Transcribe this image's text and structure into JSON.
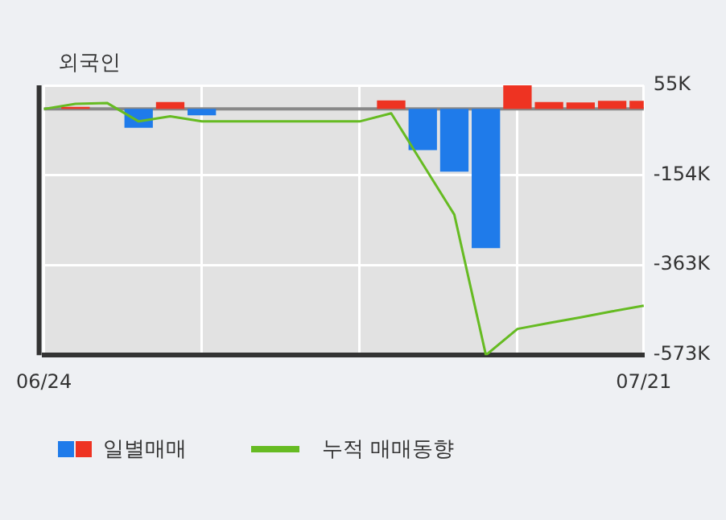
{
  "chart_data": {
    "type": "bar",
    "title": "외국인",
    "categories": [
      "06/24",
      null,
      null,
      null,
      null,
      null,
      null,
      null,
      null,
      null,
      null,
      null,
      null,
      null,
      null,
      null,
      null,
      null,
      null,
      "07/21"
    ],
    "series": [
      {
        "name": "일별매매",
        "colors": [
          "#1f7bea",
          "#ee3322",
          "#1f7bea",
          "#1f7bea",
          "#ee3322",
          "#1f7bea",
          "#1f7bea",
          "#1f7bea",
          "#1f7bea",
          "#1f7bea",
          "#1f7bea",
          "#ee3322",
          "#1f7bea",
          "#1f7bea",
          "#1f7bea",
          "#ee3322",
          "#ee3322",
          "#ee3322",
          "#ee3322",
          "#ee3322"
        ],
        "values": [
          null,
          5,
          null,
          -44,
          16,
          -15,
          null,
          null,
          null,
          null,
          null,
          20,
          -96,
          -146,
          -324,
          55,
          16,
          15,
          19,
          19
        ]
      },
      {
        "name": "누적 매매동향",
        "type": "line",
        "color": "#66bb22",
        "values": [
          0,
          12,
          14,
          -29,
          -17,
          -29,
          -29,
          -29,
          -29,
          -29,
          -29,
          -10,
          -128,
          -246,
          -573,
          -512,
          -498,
          -485,
          -471,
          -458
        ]
      }
    ],
    "ylim": [
      -573,
      55
    ],
    "yticks": [
      {
        "value": 55,
        "label": "55K"
      },
      {
        "value": -154,
        "label": "-154K"
      },
      {
        "value": -363,
        "label": "-363K"
      },
      {
        "value": -573,
        "label": "-573K"
      }
    ],
    "ref_lines": [
      {
        "axis": "y",
        "value": 0,
        "color": "#888888"
      }
    ],
    "grid": true,
    "legend": "bottom",
    "marker": "none",
    "line_style": "solid"
  }
}
